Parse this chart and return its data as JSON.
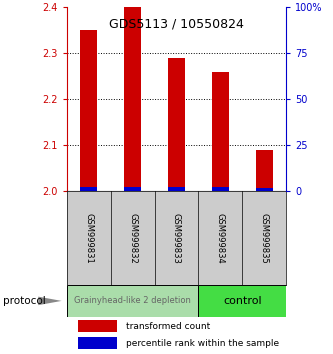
{
  "title": "GDS5113 / 10550824",
  "samples": [
    "GSM999831",
    "GSM999832",
    "GSM999833",
    "GSM999834",
    "GSM999835"
  ],
  "transformed_counts": [
    2.35,
    2.4,
    2.29,
    2.26,
    2.09
  ],
  "percentile_ranks": [
    2.0,
    2.5,
    2.0,
    2.0,
    1.5
  ],
  "ylim_left": [
    2.0,
    2.4
  ],
  "ylim_right": [
    0,
    100
  ],
  "yticks_left": [
    2.0,
    2.1,
    2.2,
    2.3,
    2.4
  ],
  "yticks_right": [
    0,
    25,
    50,
    75,
    100
  ],
  "ytick_labels_right": [
    "0",
    "25",
    "50",
    "75",
    "100%"
  ],
  "bar_color_red": "#cc0000",
  "bar_color_blue": "#0000cc",
  "groups": [
    {
      "label": "Grainyhead-like 2 depletion",
      "sample_indices": [
        0,
        1,
        2
      ],
      "color": "#aaddaa",
      "text_color": "#666666",
      "fontsize": 6
    },
    {
      "label": "control",
      "sample_indices": [
        3,
        4
      ],
      "color": "#44dd44",
      "text_color": "#000000",
      "fontsize": 8
    }
  ],
  "protocol_label": "protocol",
  "legend_red": "transformed count",
  "legend_blue": "percentile rank within the sample",
  "background_color": "#ffffff",
  "tick_color_left": "#cc0000",
  "tick_color_right": "#0000cc",
  "grid_dotted_values": [
    2.1,
    2.2,
    2.3
  ],
  "bar_width": 0.4,
  "label_cell_color": "#cccccc",
  "label_cell_border": "#000000"
}
